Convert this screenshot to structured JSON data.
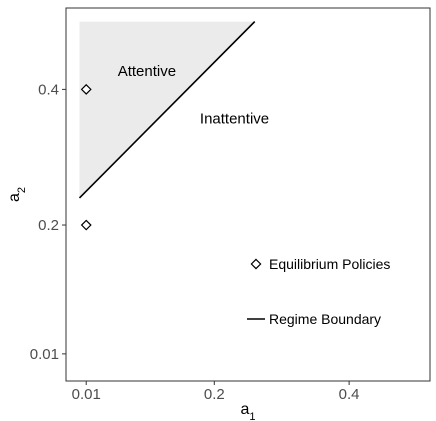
{
  "chart_data": {
    "type": "line",
    "xlabel": "a",
    "xlabel_sub": "1",
    "ylabel": "a",
    "ylabel_sub": "2",
    "x_ticks": [
      {
        "value": 0.01,
        "label": "0.01"
      },
      {
        "value": 0.2,
        "label": "0.2"
      },
      {
        "value": 0.4,
        "label": "0.4"
      }
    ],
    "y_ticks": [
      {
        "value": 0.01,
        "label": "0.01"
      },
      {
        "value": 0.2,
        "label": "0.2"
      },
      {
        "value": 0.4,
        "label": "0.4"
      }
    ],
    "xlim": [
      -0.02,
      0.52
    ],
    "ylim": [
      -0.03,
      0.52
    ],
    "regime_boundary": {
      "name": "Regime Boundary",
      "points": [
        [
          0.0,
          0.24
        ],
        [
          0.26,
          0.5
        ]
      ]
    },
    "attentive_region": {
      "label": "Attentive",
      "fill": "#ebebeb",
      "polygon": [
        [
          0.0,
          0.24
        ],
        [
          0.0,
          0.5
        ],
        [
          0.26,
          0.5
        ]
      ]
    },
    "inattentive_label": "Inattentive",
    "equilibrium_policies": {
      "name": "Equilibrium Policies",
      "points": [
        [
          0.01,
          0.4
        ],
        [
          0.01,
          0.2
        ]
      ]
    },
    "legend": {
      "placement": "bottom-right",
      "entries": [
        {
          "key": "equilibrium",
          "label": "Equilibrium Policies",
          "symbol": "diamond"
        },
        {
          "key": "boundary",
          "label": "Regime Boundary",
          "symbol": "line"
        }
      ]
    },
    "grid": false,
    "colors": {
      "line": "#000000",
      "region": "#ebebeb",
      "panel_border": "#333333",
      "tick_text": "#4d4d4d"
    }
  }
}
